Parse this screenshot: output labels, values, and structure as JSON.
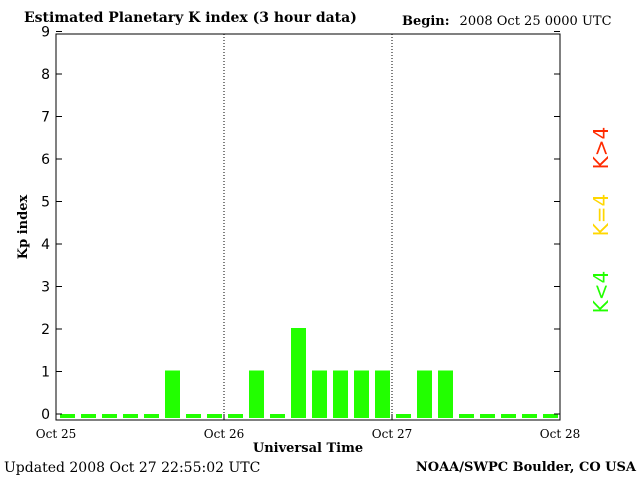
{
  "header": {
    "title": "Estimated Planetary K index (3 hour data)",
    "begin_label": "Begin:",
    "begin_value": "2008 Oct 25 0000 UTC"
  },
  "footer": {
    "updated": "Updated 2008 Oct 27 22:55:02 UTC",
    "organization": "NOAA/SWPC Boulder, CO USA"
  },
  "legend": [
    {
      "label": "K>4",
      "color": "#ff2a00"
    },
    {
      "label": "K=4",
      "color": "#ffd700"
    },
    {
      "label": "K<4",
      "color": "#22ff00"
    }
  ],
  "chart_data": {
    "type": "bar",
    "title": "Estimated Planetary K index (3 hour data)",
    "xlabel": "Universal Time",
    "ylabel": "Kp index",
    "ylim": [
      0,
      9
    ],
    "yticks": [
      0,
      1,
      2,
      3,
      4,
      5,
      6,
      7,
      8,
      9
    ],
    "xtick_labels": [
      "Oct 25",
      "Oct 26",
      "Oct 27",
      "Oct 28"
    ],
    "day_separators": [
      "Oct 26",
      "Oct 27"
    ],
    "grid": false,
    "interval_hours": 3,
    "bar_color": "#22ff00",
    "values": [
      0,
      0,
      0,
      0,
      0,
      1,
      0,
      0,
      0,
      1,
      0,
      2,
      1,
      1,
      1,
      1,
      0,
      1,
      1,
      0,
      0,
      0,
      0,
      0
    ]
  }
}
